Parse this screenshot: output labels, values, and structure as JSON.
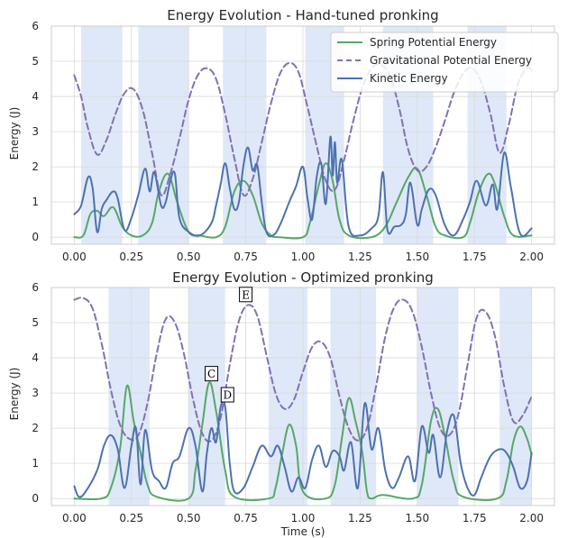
{
  "colors": {
    "spring": "#55a868",
    "gravitational": "#8172b3",
    "kinetic": "#4c72b0",
    "stance_shade": "#dfe8f8",
    "grid": "#d9d9d9"
  },
  "legend_labels": [
    "Spring Potential Energy",
    "Gravitational Potential Energy",
    "Kinetic Energy"
  ],
  "xlabel": "Time (s)",
  "chart_data": [
    {
      "type": "line",
      "title": "Energy Evolution - Hand-tuned pronking",
      "ylabel": "Energy (J)",
      "xlim": [
        -0.1,
        2.1
      ],
      "ylim": [
        -0.2,
        6.0
      ],
      "x_ticks": [
        0.0,
        0.25,
        0.5,
        0.75,
        1.0,
        1.25,
        1.5,
        1.75,
        2.0
      ],
      "x_tick_labels": [
        "0.00",
        "0.25",
        "0.50",
        "0.75",
        "1.00",
        "1.25",
        "1.50",
        "1.75",
        "2.00"
      ],
      "y_ticks": [
        0,
        1,
        2,
        3,
        4,
        5,
        6
      ],
      "y_tick_labels": [
        "0",
        "1",
        "2",
        "3",
        "4",
        "5",
        "6"
      ],
      "grid": true,
      "legend_position": "top-right",
      "shaded_regions": [
        [
          0.03,
          0.21
        ],
        [
          0.28,
          0.5
        ],
        [
          0.65,
          0.84
        ],
        [
          1.01,
          1.18
        ],
        [
          1.35,
          1.57
        ],
        [
          1.72,
          1.89
        ]
      ],
      "series": [
        {
          "name": "Spring Potential Energy",
          "style": "solid",
          "x": [
            0.0,
            0.04,
            0.07,
            0.1,
            0.13,
            0.17,
            0.21,
            0.25,
            0.3,
            0.34,
            0.37,
            0.41,
            0.45,
            0.5,
            0.55,
            0.62,
            0.66,
            0.7,
            0.74,
            0.78,
            0.82,
            0.86,
            0.9,
            1.0,
            1.03,
            1.07,
            1.1,
            1.13,
            1.16,
            1.2,
            1.3,
            1.36,
            1.41,
            1.46,
            1.5,
            1.54,
            1.58,
            1.62,
            1.7,
            1.73,
            1.77,
            1.81,
            1.84,
            1.88,
            1.92,
            2.0
          ],
          "values": [
            0.0,
            0.05,
            0.65,
            0.75,
            0.6,
            0.85,
            0.3,
            0.05,
            0.05,
            0.4,
            1.3,
            1.8,
            1.0,
            0.15,
            0.05,
            0.0,
            0.3,
            1.3,
            1.6,
            1.2,
            0.4,
            0.05,
            0.0,
            0.0,
            0.4,
            1.5,
            2.1,
            1.6,
            0.5,
            0.05,
            0.0,
            0.3,
            1.0,
            1.7,
            1.95,
            1.2,
            0.3,
            0.05,
            0.0,
            0.4,
            1.3,
            1.8,
            1.5,
            0.6,
            0.05,
            0.05
          ]
        },
        {
          "name": "Gravitational Potential Energy",
          "style": "dashed",
          "x": [
            0.0,
            0.03,
            0.06,
            0.1,
            0.14,
            0.18,
            0.22,
            0.26,
            0.3,
            0.34,
            0.38,
            0.42,
            0.46,
            0.5,
            0.54,
            0.58,
            0.62,
            0.66,
            0.7,
            0.74,
            0.78,
            0.82,
            0.86,
            0.9,
            0.94,
            0.98,
            1.02,
            1.06,
            1.1,
            1.14,
            1.18,
            1.22,
            1.26,
            1.3,
            1.34,
            1.38,
            1.42,
            1.46,
            1.5,
            1.54,
            1.58,
            1.62,
            1.66,
            1.7,
            1.74,
            1.78,
            1.82,
            1.86,
            1.9,
            1.94,
            1.98,
            2.0
          ],
          "values": [
            4.6,
            4.0,
            3.1,
            2.35,
            2.75,
            3.5,
            4.1,
            4.2,
            3.6,
            2.4,
            1.2,
            1.8,
            2.8,
            3.9,
            4.6,
            4.8,
            4.5,
            3.5,
            2.25,
            1.2,
            1.65,
            2.7,
            3.8,
            4.65,
            4.95,
            4.7,
            3.7,
            2.6,
            1.6,
            1.35,
            2.2,
            3.3,
            4.25,
            4.8,
            4.9,
            4.6,
            3.7,
            2.5,
            1.9,
            2.0,
            2.55,
            3.3,
            4.1,
            4.65,
            4.8,
            4.4,
            3.5,
            2.4,
            3.2,
            4.35,
            4.8,
            4.75
          ]
        },
        {
          "name": "Kinetic Energy",
          "style": "solid",
          "x": [
            0.0,
            0.03,
            0.06,
            0.08,
            0.1,
            0.12,
            0.14,
            0.17,
            0.19,
            0.22,
            0.25,
            0.28,
            0.31,
            0.33,
            0.35,
            0.38,
            0.4,
            0.42,
            0.44,
            0.46,
            0.5,
            0.55,
            0.6,
            0.62,
            0.64,
            0.66,
            0.68,
            0.7,
            0.72,
            0.74,
            0.76,
            0.78,
            0.8,
            0.82,
            0.84,
            0.87,
            0.9,
            0.94,
            0.97,
            1.0,
            1.02,
            1.04,
            1.06,
            1.08,
            1.1,
            1.12,
            1.13,
            1.14,
            1.15,
            1.17,
            1.2,
            1.25,
            1.3,
            1.33,
            1.35,
            1.37,
            1.4,
            1.43,
            1.45,
            1.47,
            1.5,
            1.52,
            1.55,
            1.58,
            1.62,
            1.66,
            1.7,
            1.73,
            1.76,
            1.8,
            1.83,
            1.85,
            1.88,
            1.91,
            1.95,
            2.0
          ],
          "values": [
            0.65,
            0.9,
            1.7,
            1.4,
            0.15,
            0.8,
            1.05,
            1.3,
            1.1,
            0.2,
            0.55,
            1.2,
            1.95,
            1.3,
            1.85,
            0.9,
            1.0,
            1.6,
            1.8,
            0.55,
            0.15,
            0.05,
            0.4,
            0.9,
            1.5,
            2.1,
            1.4,
            0.8,
            1.0,
            2.05,
            2.55,
            1.9,
            2.05,
            1.0,
            0.15,
            0.05,
            0.35,
            1.0,
            1.45,
            2.0,
            1.1,
            0.5,
            1.7,
            2.1,
            0.95,
            2.85,
            1.75,
            2.7,
            1.55,
            2.2,
            0.3,
            0.05,
            0.25,
            0.6,
            1.85,
            0.2,
            0.3,
            0.35,
            0.65,
            1.55,
            0.35,
            0.8,
            1.35,
            1.2,
            0.35,
            0.05,
            0.5,
            1.0,
            1.6,
            0.9,
            1.5,
            0.8,
            2.4,
            1.4,
            0.1,
            0.25
          ]
        }
      ]
    },
    {
      "type": "line",
      "title": "Energy Evolution - Optimized pronking",
      "ylabel": "Energy (J)",
      "xlabel": "Time (s)",
      "xlim": [
        -0.1,
        2.1
      ],
      "ylim": [
        -0.2,
        6.0
      ],
      "x_ticks": [
        0.0,
        0.25,
        0.5,
        0.75,
        1.0,
        1.25,
        1.5,
        1.75,
        2.0
      ],
      "x_tick_labels": [
        "0.00",
        "0.25",
        "0.50",
        "0.75",
        "1.00",
        "1.25",
        "1.50",
        "1.75",
        "2.00"
      ],
      "y_ticks": [
        0,
        1,
        2,
        3,
        4,
        5,
        6
      ],
      "y_tick_labels": [
        "0",
        "1",
        "2",
        "3",
        "4",
        "5",
        "6"
      ],
      "grid": true,
      "shaded_regions": [
        [
          0.15,
          0.33
        ],
        [
          0.5,
          0.66
        ],
        [
          0.85,
          1.02
        ],
        [
          1.12,
          1.32
        ],
        [
          1.5,
          1.68
        ],
        [
          1.86,
          2.0
        ]
      ],
      "annotations": [
        {
          "label": "C",
          "x": 0.6,
          "y": 3.55
        },
        {
          "label": "D",
          "x": 0.67,
          "y": 2.95
        },
        {
          "label": "E",
          "x": 0.75,
          "y": 5.8
        }
      ],
      "series": [
        {
          "name": "Spring Potential Energy",
          "style": "solid",
          "x": [
            0.0,
            0.12,
            0.16,
            0.2,
            0.23,
            0.26,
            0.29,
            0.32,
            0.36,
            0.5,
            0.53,
            0.56,
            0.59,
            0.62,
            0.66,
            0.7,
            0.85,
            0.88,
            0.91,
            0.94,
            0.97,
            1.0,
            1.1,
            1.14,
            1.17,
            1.2,
            1.23,
            1.26,
            1.28,
            1.3,
            1.35,
            1.48,
            1.52,
            1.56,
            1.59,
            1.62,
            1.66,
            1.7,
            1.85,
            1.89,
            1.92,
            1.95,
            1.98,
            2.0
          ],
          "values": [
            0.0,
            0.0,
            0.3,
            1.4,
            3.2,
            2.2,
            1.3,
            0.4,
            0.05,
            0.0,
            0.8,
            2.1,
            3.3,
            2.5,
            0.8,
            0.05,
            0.0,
            0.3,
            1.3,
            2.1,
            1.5,
            0.2,
            0.0,
            0.4,
            1.7,
            2.85,
            2.2,
            1.3,
            0.2,
            0.0,
            0.1,
            0.0,
            0.4,
            2.2,
            2.55,
            1.8,
            0.5,
            0.05,
            0.0,
            0.5,
            1.6,
            2.05,
            1.7,
            1.25
          ]
        },
        {
          "name": "Gravitational Potential Energy",
          "style": "dashed",
          "x": [
            0.0,
            0.04,
            0.08,
            0.12,
            0.16,
            0.2,
            0.24,
            0.28,
            0.32,
            0.36,
            0.4,
            0.44,
            0.48,
            0.52,
            0.56,
            0.6,
            0.64,
            0.68,
            0.72,
            0.76,
            0.8,
            0.84,
            0.88,
            0.92,
            0.96,
            1.0,
            1.04,
            1.08,
            1.12,
            1.16,
            1.2,
            1.24,
            1.28,
            1.32,
            1.36,
            1.4,
            1.44,
            1.48,
            1.52,
            1.56,
            1.6,
            1.64,
            1.68,
            1.72,
            1.76,
            1.8,
            1.84,
            1.88,
            1.92,
            1.96,
            2.0
          ],
          "values": [
            5.65,
            5.7,
            5.4,
            4.4,
            3.1,
            2.1,
            1.7,
            1.8,
            2.7,
            4.1,
            5.1,
            5.0,
            4.1,
            2.8,
            1.85,
            1.65,
            2.3,
            3.8,
            5.05,
            5.5,
            5.2,
            4.1,
            3.0,
            2.55,
            2.8,
            3.6,
            4.3,
            4.45,
            4.0,
            2.9,
            2.0,
            1.65,
            2.0,
            3.2,
            4.6,
            5.45,
            5.65,
            5.3,
            4.3,
            3.0,
            2.0,
            1.8,
            2.4,
            3.8,
            5.15,
            5.3,
            4.6,
            3.2,
            2.2,
            2.35,
            2.9
          ]
        },
        {
          "name": "Kinetic Energy",
          "style": "solid",
          "x": [
            0.0,
            0.02,
            0.05,
            0.1,
            0.13,
            0.16,
            0.19,
            0.22,
            0.25,
            0.27,
            0.29,
            0.31,
            0.34,
            0.37,
            0.4,
            0.43,
            0.46,
            0.5,
            0.53,
            0.56,
            0.58,
            0.6,
            0.62,
            0.64,
            0.66,
            0.68,
            0.7,
            0.74,
            0.78,
            0.82,
            0.86,
            0.89,
            0.92,
            0.95,
            0.98,
            1.01,
            1.04,
            1.07,
            1.1,
            1.13,
            1.16,
            1.18,
            1.21,
            1.24,
            1.27,
            1.3,
            1.33,
            1.36,
            1.39,
            1.42,
            1.46,
            1.49,
            1.52,
            1.55,
            1.57,
            1.6,
            1.63,
            1.66,
            1.69,
            1.72,
            1.75,
            1.78,
            1.82,
            1.86,
            1.89,
            1.92,
            1.95,
            1.98,
            2.0
          ],
          "values": [
            0.35,
            0.05,
            0.2,
            0.8,
            1.5,
            1.8,
            1.4,
            0.3,
            1.5,
            2.0,
            0.4,
            1.95,
            0.8,
            0.5,
            0.3,
            1.0,
            1.2,
            2.0,
            1.5,
            0.2,
            1.3,
            2.0,
            1.6,
            2.6,
            2.6,
            1.0,
            0.2,
            0.3,
            0.9,
            1.5,
            1.2,
            1.5,
            0.9,
            0.2,
            0.6,
            0.3,
            1.1,
            1.5,
            0.9,
            1.35,
            1.2,
            0.8,
            1.6,
            0.3,
            2.7,
            1.4,
            2.0,
            0.8,
            0.3,
            0.6,
            1.2,
            0.5,
            2.05,
            1.3,
            1.8,
            0.6,
            1.9,
            2.35,
            1.0,
            0.3,
            0.1,
            0.6,
            1.2,
            1.4,
            1.3,
            0.9,
            0.3,
            0.5,
            1.3
          ]
        }
      ]
    }
  ]
}
